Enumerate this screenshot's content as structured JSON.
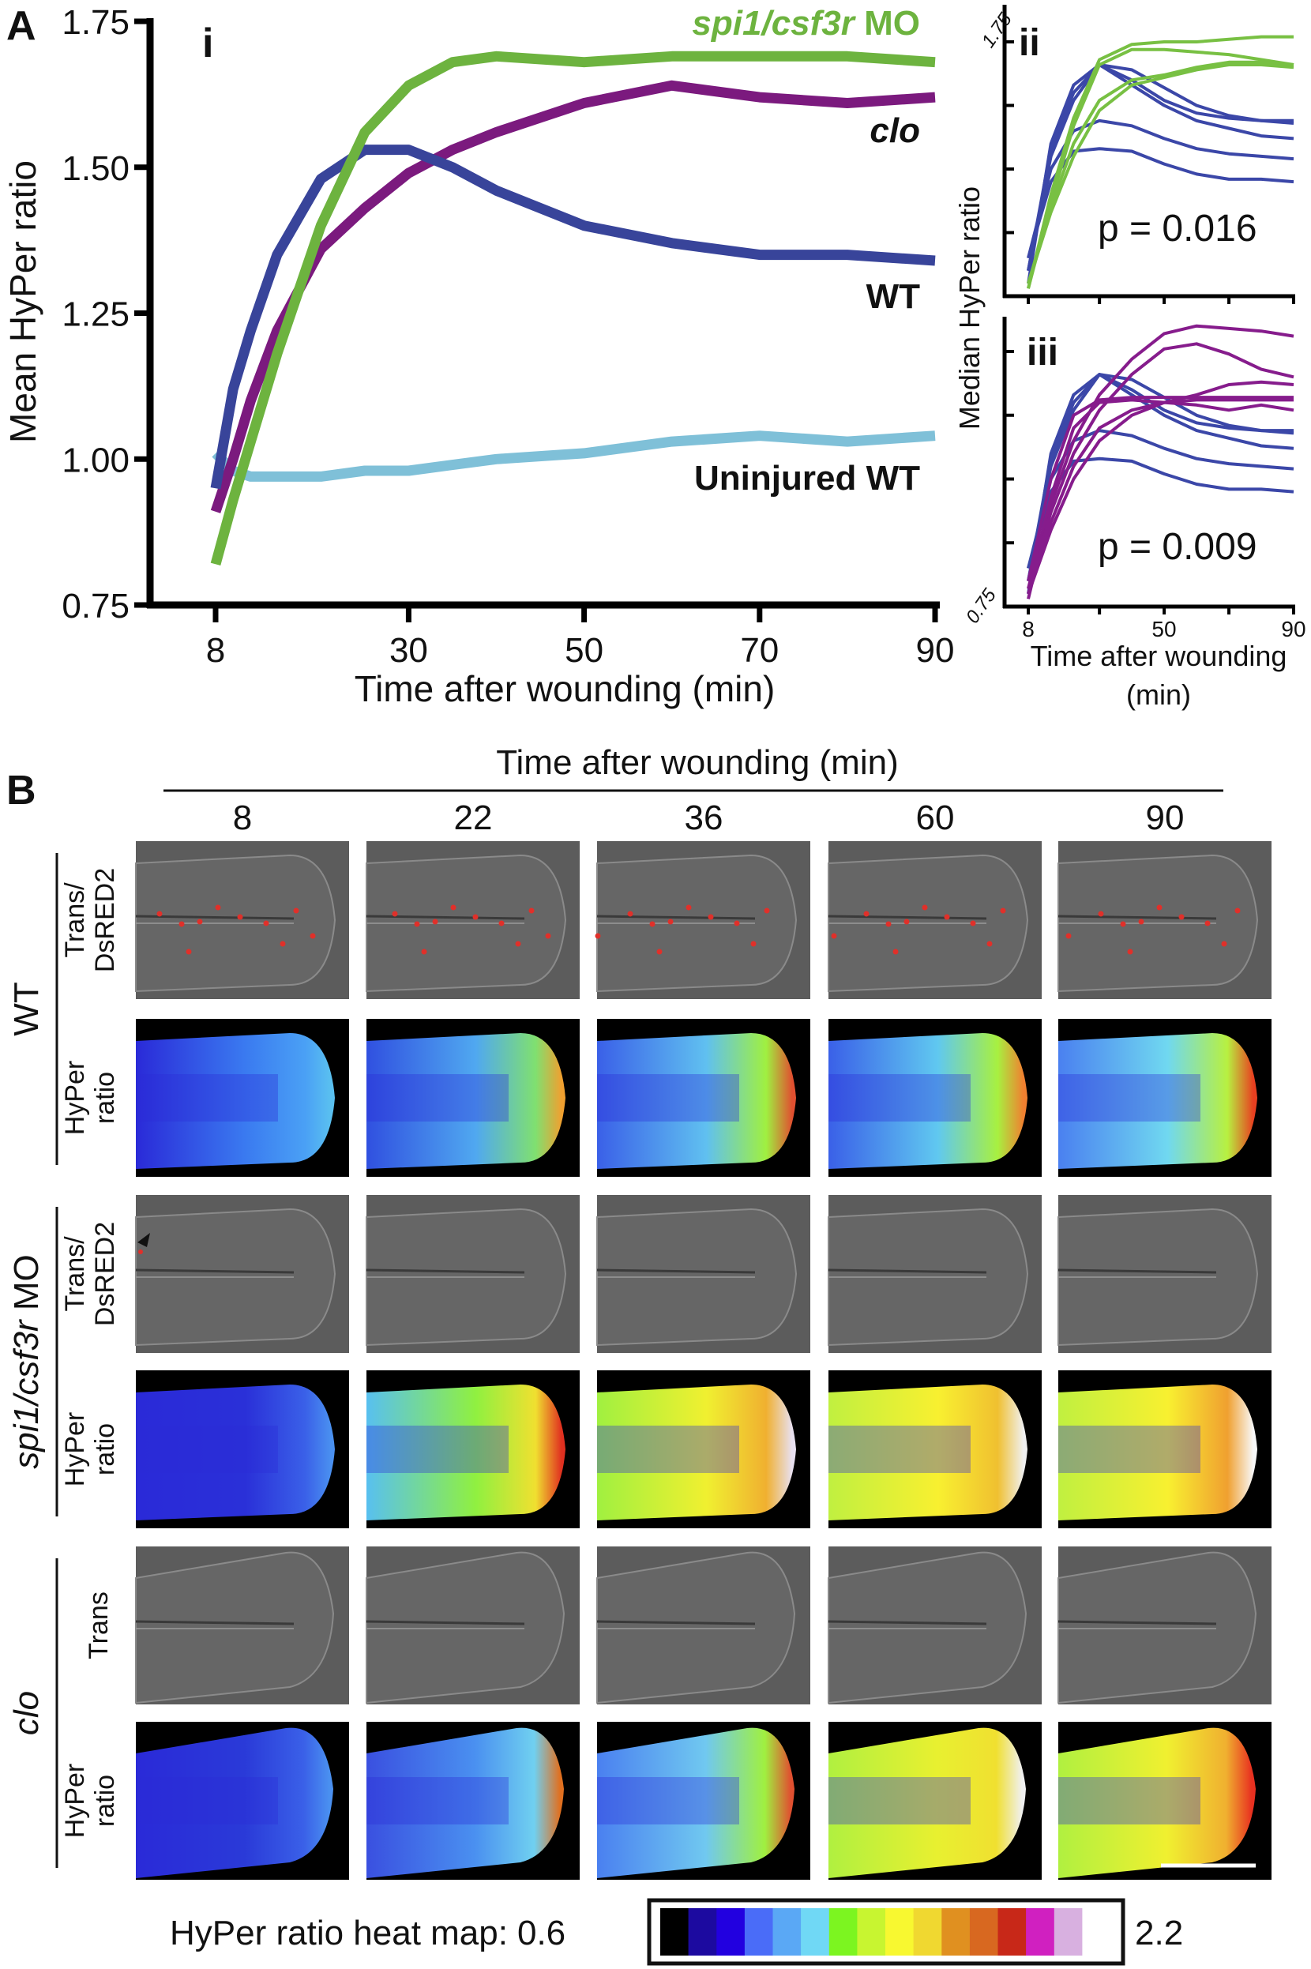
{
  "panel_labels": {
    "A": "A",
    "B": "B",
    "i": "i",
    "ii": "ii",
    "iii": "iii"
  },
  "chart_data": [
    {
      "type": "line",
      "panel": "i",
      "xlabel": "Time after wounding (min)",
      "ylabel": "Mean HyPer ratio",
      "xlim": [
        8,
        90
      ],
      "ylim": [
        0.75,
        1.75
      ],
      "xticks": [
        "8",
        "30",
        "50",
        "70",
        "90"
      ],
      "yticks": [
        "0.75",
        "1.00",
        "1.25",
        "1.50",
        "1.75"
      ],
      "x": [
        8,
        10,
        12,
        15,
        20,
        25,
        30,
        35,
        40,
        50,
        60,
        70,
        80,
        90
      ],
      "series": [
        {
          "name": "spi1/csf3r MO",
          "color": "#6db33f",
          "values": [
            0.82,
            0.93,
            1.03,
            1.18,
            1.4,
            1.56,
            1.64,
            1.68,
            1.69,
            1.68,
            1.69,
            1.69,
            1.69,
            1.68
          ]
        },
        {
          "name": "clo",
          "color": "#7b1a7e",
          "values": [
            0.91,
            1.0,
            1.1,
            1.22,
            1.36,
            1.43,
            1.49,
            1.53,
            1.56,
            1.61,
            1.64,
            1.62,
            1.61,
            1.62
          ]
        },
        {
          "name": "WT",
          "color": "#38449a",
          "values": [
            0.95,
            1.12,
            1.22,
            1.35,
            1.48,
            1.53,
            1.53,
            1.5,
            1.46,
            1.4,
            1.37,
            1.35,
            1.35,
            1.34
          ]
        },
        {
          "name": "Uninjured WT",
          "color": "#7fc0d8",
          "values": [
            1.01,
            0.98,
            0.97,
            0.97,
            0.97,
            0.98,
            0.98,
            0.99,
            1.0,
            1.01,
            1.03,
            1.04,
            1.03,
            1.04
          ]
        }
      ],
      "legend_labels": {
        "spi1": "spi1/csf3r",
        "spi1_suffix": " MO",
        "clo": "clo",
        "wt": "WT",
        "uninjured": "Uninjured WT"
      }
    },
    {
      "type": "line",
      "panel": "ii",
      "ylabel": "Median HyPer ratio",
      "xlabel": "Time after wounding",
      "xlabel2": "(min)",
      "xlim": [
        8,
        90
      ],
      "ylim": [
        0.75,
        1.9
      ],
      "ytick_top": "1.75",
      "ytick_bottom": "0.75",
      "xticks": [
        "8",
        "50",
        "90"
      ],
      "annotation": "p = 0.016",
      "x": [
        8,
        15,
        22,
        30,
        40,
        50,
        60,
        70,
        80,
        90
      ],
      "series": [
        {
          "name": "WT",
          "color": "#3b47a8",
          "values": [
            0.8,
            1.35,
            1.58,
            1.66,
            1.64,
            1.57,
            1.5,
            1.46,
            1.44,
            1.43
          ]
        },
        {
          "name": "WT",
          "color": "#3b47a8",
          "values": [
            0.85,
            1.33,
            1.55,
            1.66,
            1.6,
            1.52,
            1.47,
            1.45,
            1.44,
            1.44
          ]
        },
        {
          "name": "WT",
          "color": "#3b47a8",
          "values": [
            0.85,
            1.3,
            1.52,
            1.66,
            1.58,
            1.5,
            1.44,
            1.41,
            1.38,
            1.37
          ]
        },
        {
          "name": "WT",
          "color": "#3b47a8",
          "values": [
            0.9,
            1.25,
            1.4,
            1.44,
            1.42,
            1.37,
            1.33,
            1.31,
            1.3,
            1.29
          ]
        },
        {
          "name": "WT",
          "color": "#3b47a8",
          "values": [
            0.9,
            1.2,
            1.32,
            1.33,
            1.32,
            1.27,
            1.23,
            1.21,
            1.21,
            1.2
          ]
        },
        {
          "name": "spi1/csf3r MO",
          "color": "#78c043",
          "values": [
            0.78,
            1.15,
            1.45,
            1.68,
            1.74,
            1.75,
            1.75,
            1.76,
            1.77,
            1.77
          ]
        },
        {
          "name": "spi1/csf3r MO",
          "color": "#78c043",
          "values": [
            0.78,
            1.12,
            1.42,
            1.66,
            1.72,
            1.72,
            1.71,
            1.7,
            1.68,
            1.66
          ]
        },
        {
          "name": "spi1/csf3r MO",
          "color": "#78c043",
          "values": [
            0.8,
            1.1,
            1.35,
            1.52,
            1.6,
            1.62,
            1.65,
            1.67,
            1.67,
            1.66
          ]
        },
        {
          "name": "spi1/csf3r MO",
          "color": "#78c043",
          "values": [
            0.8,
            1.08,
            1.3,
            1.48,
            1.58,
            1.61,
            1.64,
            1.66,
            1.66,
            1.65
          ]
        }
      ]
    },
    {
      "type": "line",
      "panel": "iii",
      "xlim": [
        8,
        90
      ],
      "ylim": [
        0.75,
        1.9
      ],
      "annotation": "p = 0.009",
      "x": [
        8,
        15,
        22,
        30,
        40,
        50,
        60,
        70,
        80,
        90
      ],
      "series": [
        {
          "name": "WT",
          "color": "#3b47a8",
          "values": [
            0.8,
            1.35,
            1.58,
            1.66,
            1.64,
            1.57,
            1.5,
            1.46,
            1.44,
            1.43
          ]
        },
        {
          "name": "WT",
          "color": "#3b47a8",
          "values": [
            0.85,
            1.33,
            1.55,
            1.66,
            1.6,
            1.52,
            1.47,
            1.45,
            1.44,
            1.44
          ]
        },
        {
          "name": "WT",
          "color": "#3b47a8",
          "values": [
            0.85,
            1.3,
            1.52,
            1.66,
            1.58,
            1.5,
            1.44,
            1.41,
            1.38,
            1.37
          ]
        },
        {
          "name": "WT",
          "color": "#3b47a8",
          "values": [
            0.9,
            1.25,
            1.4,
            1.44,
            1.42,
            1.37,
            1.33,
            1.31,
            1.3,
            1.29
          ]
        },
        {
          "name": "WT",
          "color": "#3b47a8",
          "values": [
            0.9,
            1.2,
            1.32,
            1.33,
            1.32,
            1.27,
            1.23,
            1.21,
            1.21,
            1.2
          ]
        },
        {
          "name": "clo",
          "color": "#861c8c",
          "values": [
            0.78,
            1.15,
            1.4,
            1.58,
            1.72,
            1.82,
            1.85,
            1.84,
            1.83,
            1.81
          ]
        },
        {
          "name": "clo",
          "color": "#861c8c",
          "values": [
            0.8,
            1.12,
            1.35,
            1.52,
            1.66,
            1.76,
            1.78,
            1.74,
            1.68,
            1.65
          ]
        },
        {
          "name": "clo",
          "color": "#861c8c",
          "values": [
            0.82,
            1.18,
            1.45,
            1.55,
            1.56,
            1.55,
            1.58,
            1.62,
            1.63,
            1.62
          ]
        },
        {
          "name": "clo",
          "color": "#861c8c",
          "values": [
            0.85,
            1.25,
            1.5,
            1.56,
            1.57,
            1.57,
            1.57,
            1.57,
            1.57,
            1.57
          ]
        },
        {
          "name": "clo",
          "color": "#861c8c",
          "values": [
            0.8,
            1.05,
            1.25,
            1.4,
            1.5,
            1.55,
            1.54,
            1.52,
            1.54,
            1.52
          ]
        },
        {
          "name": "clo",
          "color": "#861c8c",
          "values": [
            0.82,
            1.08,
            1.3,
            1.45,
            1.52,
            1.55,
            1.56,
            1.56,
            1.56,
            1.56
          ]
        }
      ]
    }
  ],
  "panel_b": {
    "title": "Time after wounding (min)",
    "timepoints": [
      "8",
      "22",
      "36",
      "60",
      "90"
    ],
    "groups": [
      {
        "label": "WT",
        "rows": [
          {
            "label1": "Trans/",
            "label2": "DsRED2"
          },
          {
            "label1": "HyPer",
            "label2": "ratio"
          }
        ]
      },
      {
        "label": "spi1/csf3r",
        "label_suffix": " MO",
        "rows": [
          {
            "label1": "Trans/",
            "label2": "DsRED2"
          },
          {
            "label1": "HyPer",
            "label2": "ratio"
          }
        ]
      },
      {
        "label": "clo",
        "rows": [
          {
            "label1": "Trans",
            "label2": ""
          },
          {
            "label1": "HyPer",
            "label2": "ratio"
          }
        ]
      }
    ]
  },
  "colorbar": {
    "label": "HyPer ratio heat map:",
    "min": "0.6",
    "max": "2.2",
    "colors": [
      "#000000",
      "#1c0aa0",
      "#2200e0",
      "#4a6cf8",
      "#5aa8f5",
      "#70d8f5",
      "#7cf520",
      "#c8f530",
      "#f8f830",
      "#f0d830",
      "#e09020",
      "#d86820",
      "#c82818",
      "#d020c0",
      "#d8b0e0",
      "#ffffff"
    ]
  }
}
